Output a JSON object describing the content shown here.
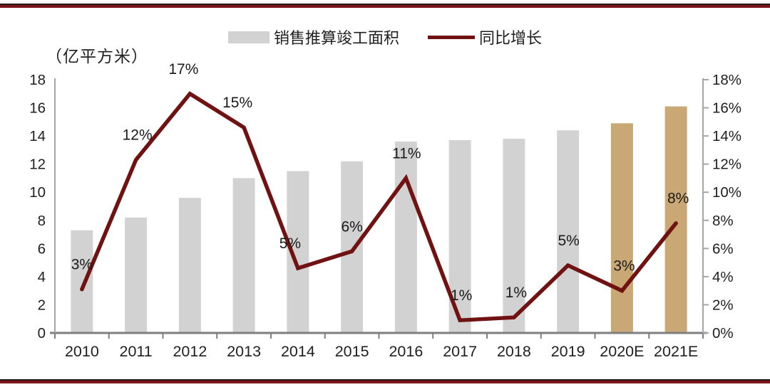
{
  "unit_label": "（亿平方米）",
  "legend": {
    "bar_label": "销售推算竣工面积",
    "line_label": "同比增长"
  },
  "colors": {
    "bar": "#d2d2d2",
    "bar_estimate": "#c9a876",
    "line": "#701212",
    "axis": "#a6a6a6",
    "axis_strong": "#7f7f7f",
    "text": "#1f1f1f",
    "border_maroon": "#7d141a",
    "border_dark": "#1a1a1a"
  },
  "chart_data": {
    "type": "combo bar+line",
    "categories": [
      "2010",
      "2011",
      "2012",
      "2013",
      "2014",
      "2015",
      "2016",
      "2017",
      "2018",
      "2019",
      "2020E",
      "2021E"
    ],
    "series": [
      {
        "name": "销售推算竣工面积",
        "type": "bar",
        "axis": "left",
        "unit": "亿平方米",
        "values": [
          7.3,
          8.2,
          9.6,
          11.0,
          11.5,
          12.2,
          13.6,
          13.7,
          13.8,
          14.4,
          14.9,
          16.1
        ],
        "estimate_flags": [
          false,
          false,
          false,
          false,
          false,
          false,
          false,
          false,
          false,
          false,
          true,
          true
        ]
      },
      {
        "name": "同比增长",
        "type": "line",
        "axis": "right",
        "unit": "%",
        "values": [
          3.1,
          12.3,
          17.0,
          14.6,
          4.6,
          5.8,
          11.0,
          0.9,
          1.1,
          4.8,
          3.0,
          7.8
        ],
        "point_labels": [
          "3%",
          "12%",
          "17%",
          "15%",
          "5%",
          "6%",
          "11%",
          "1%",
          "1%",
          "5%",
          "3%",
          "8%"
        ]
      }
    ],
    "left_axis": {
      "title": "（亿平方米）",
      "min": 0,
      "max": 18,
      "step": 2
    },
    "right_axis": {
      "min": 0,
      "max": 18,
      "step": 2,
      "suffix": "%"
    },
    "grid": false,
    "legend_position": "top-center"
  }
}
